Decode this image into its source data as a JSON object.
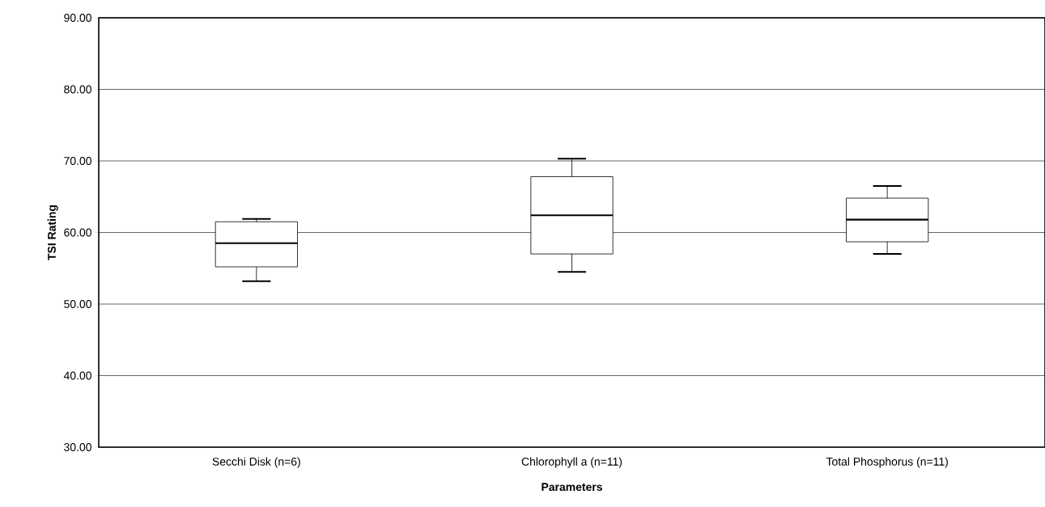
{
  "chart_data": {
    "type": "box",
    "xlabel": "Parameters",
    "ylabel": "TSI Rating",
    "categories": [
      "Secchi Disk (n=6)",
      "Chlorophyll a (n=11)",
      "Total Phosphorus (n=11)"
    ],
    "boxes": [
      {
        "low": 53.2,
        "q1": 55.2,
        "median": 58.5,
        "q3": 61.5,
        "high": 61.9
      },
      {
        "low": 54.5,
        "q1": 57.0,
        "median": 62.4,
        "q3": 67.8,
        "high": 70.3
      },
      {
        "low": 57.0,
        "q1": 58.7,
        "median": 61.8,
        "q3": 64.8,
        "high": 66.5
      }
    ],
    "ylim": [
      30,
      90
    ],
    "yticks": [
      {
        "value": 30,
        "label": "30.00"
      },
      {
        "value": 40,
        "label": "40.00"
      },
      {
        "value": 50,
        "label": "50.00"
      },
      {
        "value": 60,
        "label": "60.00"
      },
      {
        "value": 70,
        "label": "70.00"
      },
      {
        "value": 80,
        "label": "80.00"
      },
      {
        "value": 90,
        "label": "90.00"
      }
    ],
    "grid": "y"
  }
}
